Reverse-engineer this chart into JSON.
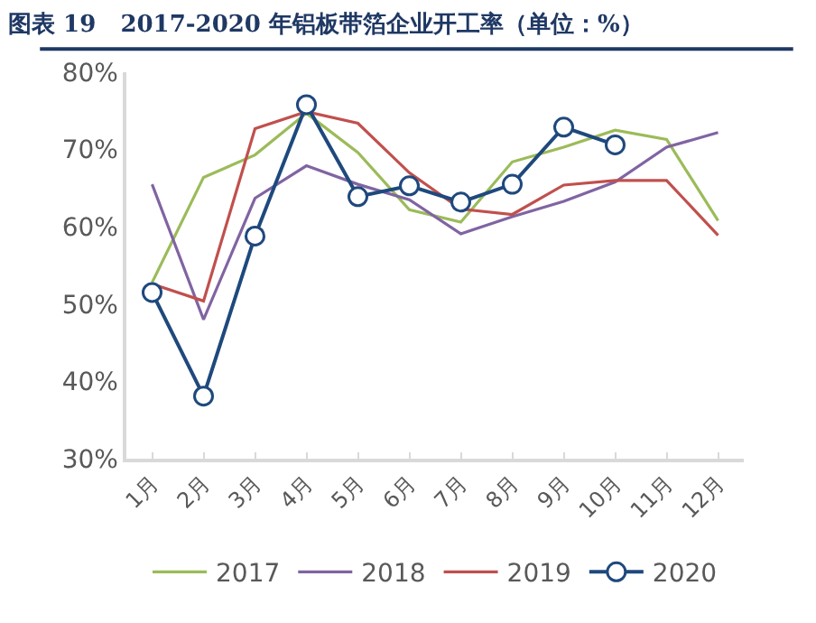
{
  "chart_data": {
    "type": "line",
    "title": "图表 19   2017-2020 年铝板带箔企业开工率（单位：%）",
    "categories": [
      "1月",
      "2月",
      "3月",
      "4月",
      "5月",
      "6月",
      "7月",
      "8月",
      "9月",
      "10月",
      "11月",
      "12月"
    ],
    "series": [
      {
        "name": "2017",
        "color": "#9bbb59",
        "values": [
          52.8,
          66.4,
          69.3,
          74.7,
          69.6,
          62.2,
          60.6,
          68.4,
          70.3,
          72.5,
          71.3,
          60.8
        ]
      },
      {
        "name": "2018",
        "color": "#8064a2",
        "values": [
          65.5,
          48.0,
          63.7,
          67.9,
          65.5,
          63.5,
          59.1,
          61.3,
          63.3,
          65.8,
          70.3,
          72.2
        ]
      },
      {
        "name": "2019",
        "color": "#c0504d",
        "values": [
          52.6,
          50.4,
          72.7,
          74.9,
          73.4,
          67.0,
          62.3,
          61.6,
          65.4,
          66.0,
          66.0,
          58.9
        ]
      },
      {
        "name": "2020",
        "color": "#1f497d",
        "marker": "circle",
        "values": [
          51.5,
          38.1,
          58.8,
          75.8,
          63.9,
          65.3,
          63.2,
          65.5,
          72.9,
          70.6,
          null,
          null
        ]
      }
    ],
    "ylim": [
      30,
      80
    ],
    "yticks": [
      {
        "value": 30,
        "label": "30%"
      },
      {
        "value": 40,
        "label": "40%"
      },
      {
        "value": 50,
        "label": "50%"
      },
      {
        "value": 60,
        "label": "60%"
      },
      {
        "value": 70,
        "label": "70%"
      },
      {
        "value": 80,
        "label": "80%"
      }
    ],
    "grid": false,
    "legend": "bottom",
    "line_style": "solid"
  }
}
